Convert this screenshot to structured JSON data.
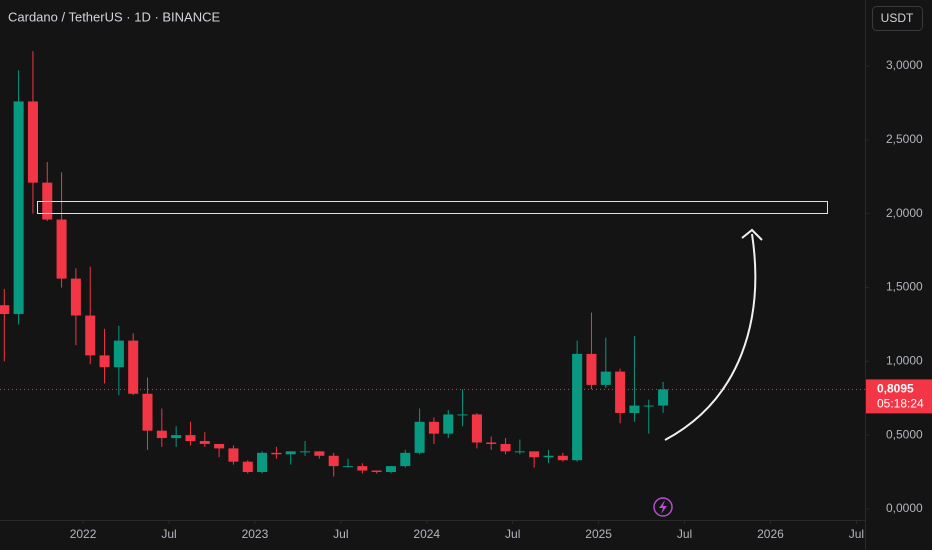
{
  "chart_data": {
    "type": "candlestick",
    "title": "Cardano / TetherUS · 1D · BINANCE",
    "currency_button": "USDT",
    "up_color": "#089981",
    "down_color": "#f23645",
    "x": [
      -5.5,
      -4.5,
      -3.5,
      -2.5,
      -1.5,
      -0.5,
      0.5,
      1.5,
      2.5,
      3.5,
      4.5,
      5.5,
      6.5,
      7.5,
      8.5,
      9.5,
      10.5,
      11.5,
      12.5,
      13.5,
      14.5,
      15.5,
      16.5,
      17.5,
      18.5,
      19.5,
      20.5,
      21.5,
      22.5,
      23.5,
      24.5,
      25.5,
      26.5,
      27.5,
      28.5,
      29.5,
      30.5,
      31.5,
      32.5,
      33.5,
      34.5,
      35.5,
      36.5,
      37.5,
      38.5,
      39.5,
      40.5
    ],
    "open": [
      1.38,
      1.32,
      2.76,
      2.21,
      1.96,
      1.56,
      1.31,
      1.04,
      0.96,
      1.14,
      0.78,
      0.53,
      0.48,
      0.5,
      0.46,
      0.44,
      0.41,
      0.32,
      0.25,
      0.38,
      0.37,
      0.39,
      0.39,
      0.36,
      0.29,
      0.29,
      0.26,
      0.25,
      0.29,
      0.38,
      0.59,
      0.51,
      0.64,
      0.64,
      0.45,
      0.44,
      0.39,
      0.39,
      0.35,
      0.36,
      0.33,
      1.05,
      0.84,
      0.93,
      0.65,
      0.7,
      0.7
    ],
    "high": [
      1.49,
      2.97,
      3.1,
      2.35,
      2.28,
      1.63,
      1.64,
      1.22,
      1.24,
      1.19,
      0.89,
      0.68,
      0.56,
      0.59,
      0.52,
      0.44,
      0.43,
      0.33,
      0.39,
      0.42,
      0.39,
      0.46,
      0.39,
      0.38,
      0.34,
      0.31,
      0.26,
      0.29,
      0.4,
      0.68,
      0.62,
      0.67,
      0.81,
      0.65,
      0.49,
      0.48,
      0.47,
      0.39,
      0.4,
      0.38,
      1.14,
      1.33,
      1.16,
      0.95,
      1.17,
      0.74,
      0.86
    ],
    "low": [
      1.0,
      1.25,
      2.0,
      1.95,
      1.5,
      1.11,
      0.98,
      0.85,
      0.77,
      0.77,
      0.4,
      0.42,
      0.42,
      0.43,
      0.42,
      0.35,
      0.3,
      0.24,
      0.24,
      0.34,
      0.3,
      0.36,
      0.34,
      0.22,
      0.28,
      0.24,
      0.24,
      0.24,
      0.28,
      0.37,
      0.44,
      0.48,
      0.56,
      0.41,
      0.4,
      0.37,
      0.37,
      0.28,
      0.31,
      0.32,
      0.32,
      0.81,
      0.82,
      0.58,
      0.59,
      0.51,
      0.65
    ],
    "close": [
      1.32,
      2.76,
      2.21,
      1.96,
      1.56,
      1.31,
      1.04,
      0.96,
      1.14,
      0.78,
      0.53,
      0.48,
      0.5,
      0.46,
      0.44,
      0.41,
      0.32,
      0.25,
      0.38,
      0.37,
      0.39,
      0.39,
      0.36,
      0.29,
      0.29,
      0.26,
      0.25,
      0.29,
      0.38,
      0.59,
      0.51,
      0.64,
      0.64,
      0.45,
      0.44,
      0.39,
      0.39,
      0.35,
      0.36,
      0.33,
      1.05,
      0.84,
      0.93,
      0.65,
      0.7,
      0.7,
      0.8095
    ],
    "xlim": [
      -5.8,
      54.6
    ],
    "xticks": [
      {
        "value": 0,
        "label": "2022"
      },
      {
        "value": 6,
        "label": "Jul"
      },
      {
        "value": 12,
        "label": "2023"
      },
      {
        "value": 18,
        "label": "Jul"
      },
      {
        "value": 24,
        "label": "2024"
      },
      {
        "value": 30,
        "label": "Jul"
      },
      {
        "value": 36,
        "label": "2025"
      },
      {
        "value": 42,
        "label": "Jul"
      },
      {
        "value": 48,
        "label": "2026"
      },
      {
        "value": 54,
        "label": "Jul"
      }
    ],
    "ylim": [
      -0.075,
      3.447
    ],
    "yticks": [
      {
        "value": 0,
        "label": "0,0000"
      },
      {
        "value": 0.5,
        "label": "0,5000"
      },
      {
        "value": 1,
        "label": "1,0000"
      },
      {
        "value": 1.5,
        "label": "1,5000"
      },
      {
        "value": 2,
        "label": "2,0000"
      },
      {
        "value": 2.5,
        "label": "2,5000"
      },
      {
        "value": 3,
        "label": "3,0000"
      }
    ],
    "last_price": {
      "value": 0.8095,
      "label": "0,8095"
    },
    "countdown": "05:18:24"
  }
}
